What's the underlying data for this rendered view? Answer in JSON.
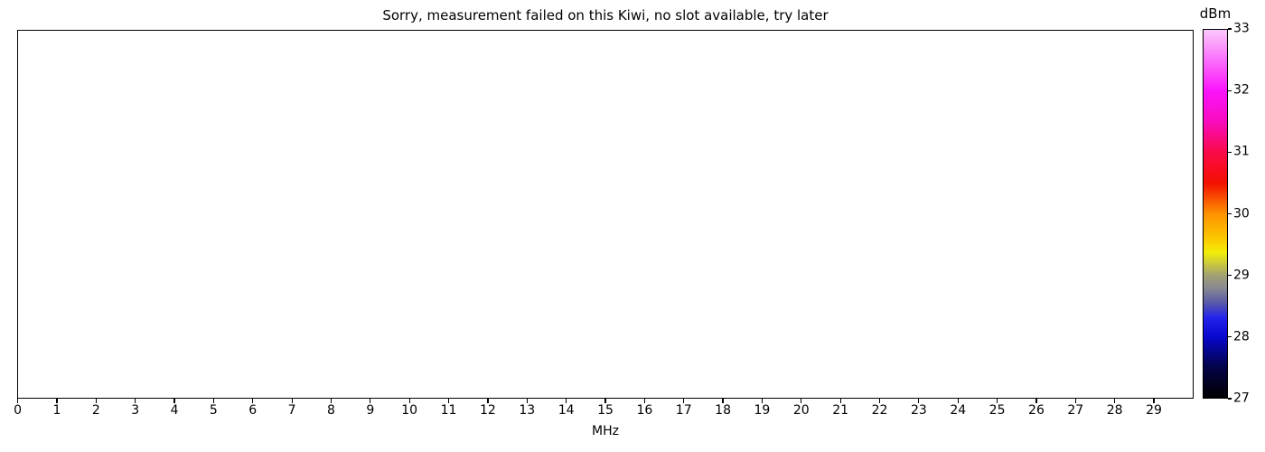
{
  "chart_data": {
    "type": "heatmap",
    "title": "Sorry, measurement failed on this Kiwi, no slot available, try later",
    "xlabel": "MHz",
    "ylabel": "",
    "xlim": [
      0,
      30
    ],
    "x_ticks": [
      0,
      1,
      2,
      3,
      4,
      5,
      6,
      7,
      8,
      9,
      10,
      11,
      12,
      13,
      14,
      15,
      16,
      17,
      18,
      19,
      20,
      21,
      22,
      23,
      24,
      25,
      26,
      27,
      28,
      29
    ],
    "y_ticks": [],
    "grid": false,
    "values": [],
    "plot_area_empty": true,
    "colorbar": {
      "label": "dBm",
      "min": 27,
      "max": 33,
      "ticks": [
        33,
        32,
        31,
        30,
        29,
        28,
        27
      ],
      "gradient_stops": [
        {
          "value": 33.0,
          "color": "#fbc8fb"
        },
        {
          "value": 32.0,
          "color": "#fb14fb"
        },
        {
          "value": 31.5,
          "color": "#fa0cbe"
        },
        {
          "value": 31.0,
          "color": "#fa0a48"
        },
        {
          "value": 30.5,
          "color": "#f31000"
        },
        {
          "value": 30.0,
          "color": "#fe9200"
        },
        {
          "value": 29.58,
          "color": "#fcca00"
        },
        {
          "value": 29.37,
          "color": "#f2ee08"
        },
        {
          "value": 29.0,
          "color": "#a2a272"
        },
        {
          "value": 28.8,
          "color": "#8a8a90"
        },
        {
          "value": 28.55,
          "color": "#5a5aa8"
        },
        {
          "value": 28.3,
          "color": "#2222ec"
        },
        {
          "value": 28.0,
          "color": "#0808d0"
        },
        {
          "value": 27.5,
          "color": "#030348"
        },
        {
          "value": 27.0,
          "color": "#000000"
        }
      ]
    }
  }
}
